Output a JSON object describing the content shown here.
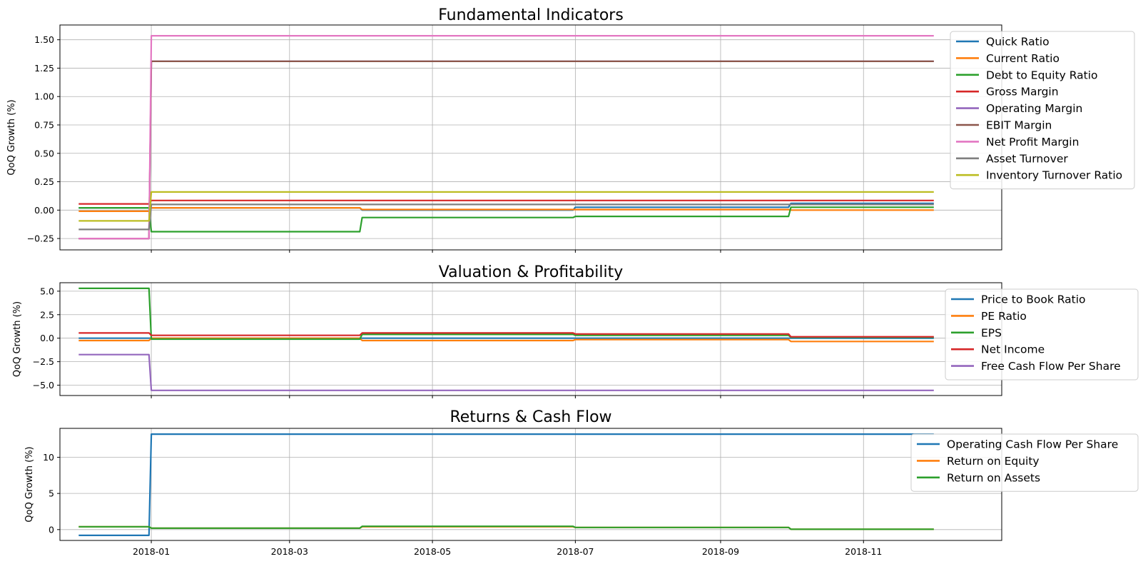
{
  "chart_data": [
    {
      "type": "line",
      "title": "Fundamental Indicators",
      "ylabel": "QoQ Growth (%)",
      "xlabel": "",
      "x": [
        "2017-12-01",
        "2017-12-31",
        "2018-01-01",
        "2018-03-31",
        "2018-04-01",
        "2018-06-30",
        "2018-07-01",
        "2018-09-30",
        "2018-10-01",
        "2018-12-01"
      ],
      "ylim": [
        -0.35,
        1.63
      ],
      "yticks": [
        -0.25,
        0.0,
        0.25,
        0.5,
        0.75,
        1.0,
        1.25,
        1.5
      ],
      "ytick_labels": [
        "−0.25",
        "0.00",
        "0.25",
        "0.50",
        "0.75",
        "1.00",
        "1.25",
        "1.50"
      ],
      "grid": true,
      "legend": "upper-right",
      "series": [
        {
          "name": "Quick Ratio",
          "color": "#1f77b4",
          "values": [
            0.02,
            0.02,
            0.02,
            0.02,
            0.0,
            0.0,
            0.025,
            0.025,
            0.06,
            0.06
          ]
        },
        {
          "name": "Current Ratio",
          "color": "#ff7f0e",
          "values": [
            -0.01,
            -0.01,
            0.02,
            0.02,
            0.005,
            0.005,
            0.005,
            0.005,
            0.0,
            0.0
          ]
        },
        {
          "name": "Debt to Equity Ratio",
          "color": "#2ca02c",
          "values": [
            0.02,
            0.02,
            -0.19,
            -0.19,
            -0.065,
            -0.065,
            -0.055,
            -0.055,
            0.025,
            0.025
          ]
        },
        {
          "name": "Gross Margin",
          "color": "#d62728",
          "values": [
            0.055,
            0.055,
            0.085,
            0.085,
            0.085,
            0.085,
            0.085,
            0.085,
            0.085,
            0.085
          ]
        },
        {
          "name": "Operating Margin",
          "color": "#9467bd",
          "values": [
            -0.25,
            -0.25,
            1.31,
            1.31,
            1.31,
            1.31,
            1.31,
            1.31,
            1.31,
            1.31
          ]
        },
        {
          "name": "EBIT Margin",
          "color": "#8c564b",
          "values": [
            -0.25,
            -0.25,
            1.31,
            1.31,
            1.31,
            1.31,
            1.31,
            1.31,
            1.31,
            1.31
          ]
        },
        {
          "name": "Net Profit Margin",
          "color": "#e377c2",
          "values": [
            -0.25,
            -0.25,
            1.535,
            1.535,
            1.535,
            1.535,
            1.535,
            1.535,
            1.535,
            1.535
          ]
        },
        {
          "name": "Asset Turnover",
          "color": "#7f7f7f",
          "values": [
            -0.17,
            -0.17,
            0.05,
            0.05,
            0.05,
            0.05,
            0.05,
            0.05,
            0.05,
            0.05
          ]
        },
        {
          "name": "Inventory Turnover Ratio",
          "color": "#bcbd22",
          "values": [
            -0.095,
            -0.095,
            0.16,
            0.16,
            0.16,
            0.16,
            0.16,
            0.16,
            0.16,
            0.16
          ]
        }
      ]
    },
    {
      "type": "line",
      "title": "Valuation & Profitability",
      "ylabel": "QoQ Growth (%)",
      "xlabel": "",
      "x": [
        "2017-12-01",
        "2017-12-31",
        "2018-01-01",
        "2018-03-31",
        "2018-04-01",
        "2018-06-30",
        "2018-07-01",
        "2018-09-30",
        "2018-10-01",
        "2018-12-01"
      ],
      "ylim": [
        -6.1,
        5.9
      ],
      "yticks": [
        -5.0,
        -2.5,
        0.0,
        2.5,
        5.0
      ],
      "ytick_labels": [
        "−5.0",
        "−2.5",
        "0.0",
        "2.5",
        "5.0"
      ],
      "grid": true,
      "legend": "upper-right",
      "series": [
        {
          "name": "Price to Book Ratio",
          "color": "#1f77b4",
          "values": [
            0.0,
            0.0,
            0.0,
            0.0,
            0.0,
            0.0,
            0.0,
            0.0,
            0.0,
            0.0
          ]
        },
        {
          "name": "PE Ratio",
          "color": "#ff7f0e",
          "values": [
            -0.25,
            -0.25,
            0.0,
            0.0,
            -0.25,
            -0.25,
            -0.15,
            -0.15,
            -0.35,
            -0.35
          ]
        },
        {
          "name": "EPS",
          "color": "#2ca02c",
          "values": [
            5.3,
            5.3,
            -0.1,
            -0.1,
            0.4,
            0.4,
            0.3,
            0.3,
            0.1,
            0.1
          ]
        },
        {
          "name": "Net Income",
          "color": "#d62728",
          "values": [
            0.55,
            0.55,
            0.3,
            0.3,
            0.55,
            0.55,
            0.45,
            0.45,
            0.15,
            0.15
          ]
        },
        {
          "name": "Free Cash Flow Per Share",
          "color": "#9467bd",
          "values": [
            -1.75,
            -1.75,
            -5.55,
            -5.55,
            -5.55,
            -5.55,
            -5.55,
            -5.55,
            -5.55,
            -5.55
          ]
        }
      ]
    },
    {
      "type": "line",
      "title": "Returns & Cash Flow",
      "ylabel": "QoQ Growth (%)",
      "xlabel": "",
      "x": [
        "2017-12-01",
        "2017-12-31",
        "2018-01-01",
        "2018-03-31",
        "2018-04-01",
        "2018-06-30",
        "2018-07-01",
        "2018-09-30",
        "2018-10-01",
        "2018-12-01"
      ],
      "ylim": [
        -1.5,
        14.0
      ],
      "yticks": [
        0,
        5,
        10
      ],
      "ytick_labels": [
        "0",
        "5",
        "10"
      ],
      "xticks": [
        "2018-01-01",
        "2018-03-01",
        "2018-05-01",
        "2018-07-01",
        "2018-09-01",
        "2018-11-01"
      ],
      "xtick_labels": [
        "2018-01",
        "2018-03",
        "2018-05",
        "2018-07",
        "2018-09",
        "2018-11"
      ],
      "grid": true,
      "legend": "upper-right",
      "series": [
        {
          "name": "Operating Cash Flow Per Share",
          "color": "#1f77b4",
          "values": [
            -0.8,
            -0.8,
            13.2,
            13.2,
            13.2,
            13.2,
            13.2,
            13.2,
            13.2,
            13.2
          ]
        },
        {
          "name": "Return on Equity",
          "color": "#ff7f0e",
          "values": [
            0.4,
            0.4,
            0.2,
            0.2,
            0.4,
            0.4,
            0.3,
            0.3,
            0.05,
            0.05
          ]
        },
        {
          "name": "Return on Assets",
          "color": "#2ca02c",
          "values": [
            0.4,
            0.4,
            0.2,
            0.2,
            0.45,
            0.45,
            0.3,
            0.3,
            0.05,
            0.05
          ]
        }
      ]
    }
  ],
  "x_axis": {
    "range": [
      "2017-11-23",
      "2018-12-30"
    ],
    "ticks": [
      "2018-01-01",
      "2018-03-01",
      "2018-05-01",
      "2018-07-01",
      "2018-09-01",
      "2018-11-01"
    ],
    "tick_labels": [
      "2018-01",
      "2018-03",
      "2018-05",
      "2018-07",
      "2018-09",
      "2018-11"
    ]
  }
}
